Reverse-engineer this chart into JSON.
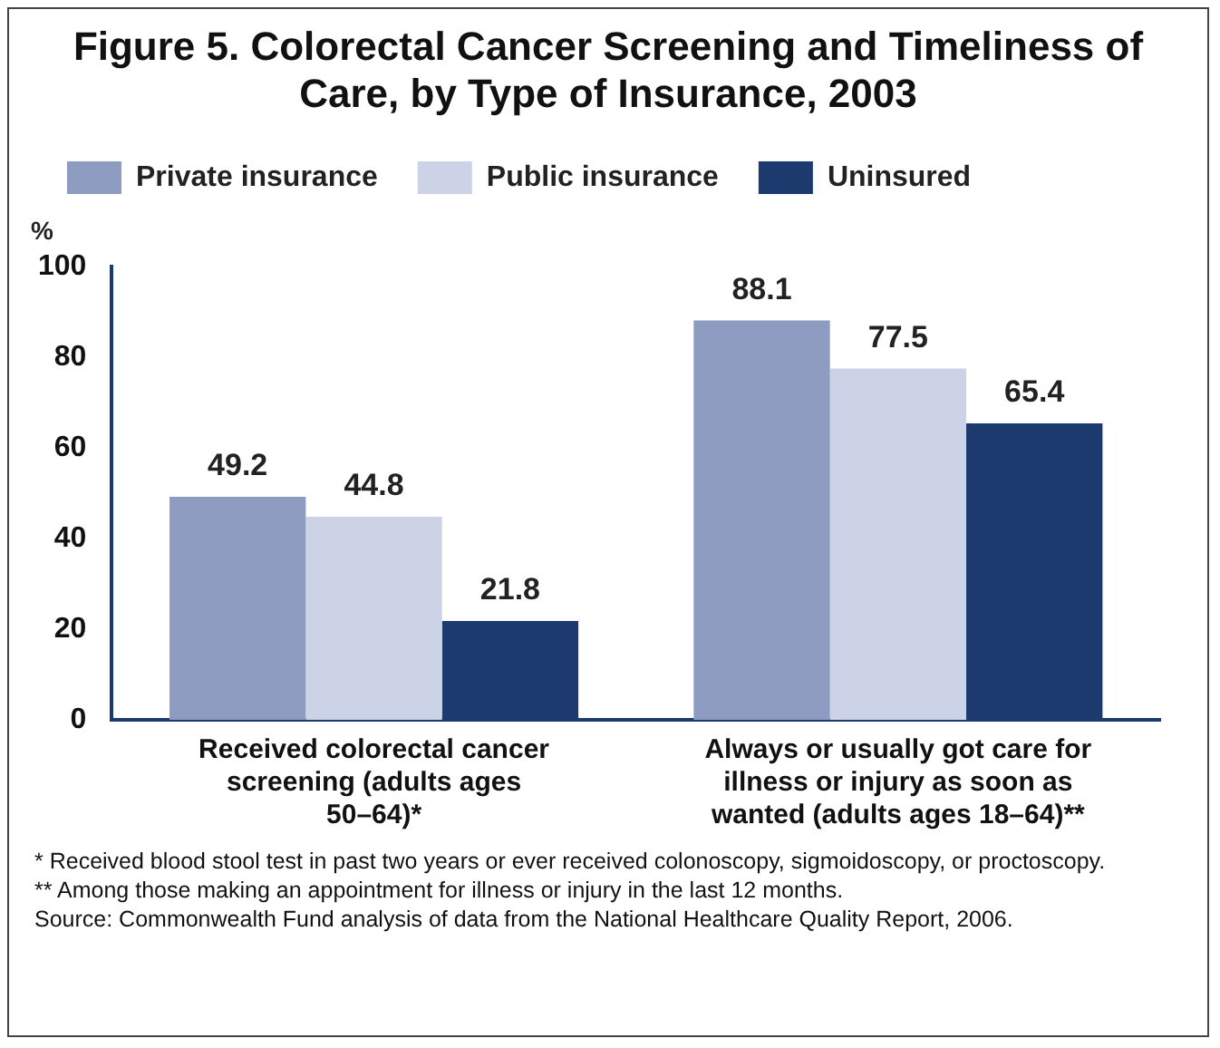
{
  "chart_data": {
    "type": "bar",
    "title": "Figure 5. Colorectal Cancer Screening and Timeliness of Care, by Type of Insurance, 2003",
    "ylabel": "%",
    "categories": [
      "Received colorectal cancer screening (adults ages 50–64)*",
      "Always or usually got care for illness or injury as soon as wanted (adults ages 18–64)**"
    ],
    "series": [
      {
        "name": "Private insurance",
        "color": "#8e9cc2",
        "values": [
          49.2,
          88.1
        ]
      },
      {
        "name": "Public insurance",
        "color": "#cdd3e6",
        "values": [
          44.8,
          77.5
        ]
      },
      {
        "name": "Uninsured",
        "color": "#1c3a6e",
        "values": [
          21.8,
          65.4
        ]
      }
    ],
    "ylim": [
      0,
      100
    ],
    "yticks": [
      0,
      20,
      40,
      60,
      80,
      100
    ],
    "grid": false,
    "legend": "top",
    "data_labels": true,
    "annotations": [
      "* Received blood stool test in past two years or ever received colonoscopy, sigmoidoscopy, or proctoscopy.",
      "** Among those making an appointment for illness or injury in the last 12 months.",
      "Source: Commonwealth Fund analysis of data from the National Healthcare Quality Report, 2006."
    ]
  }
}
